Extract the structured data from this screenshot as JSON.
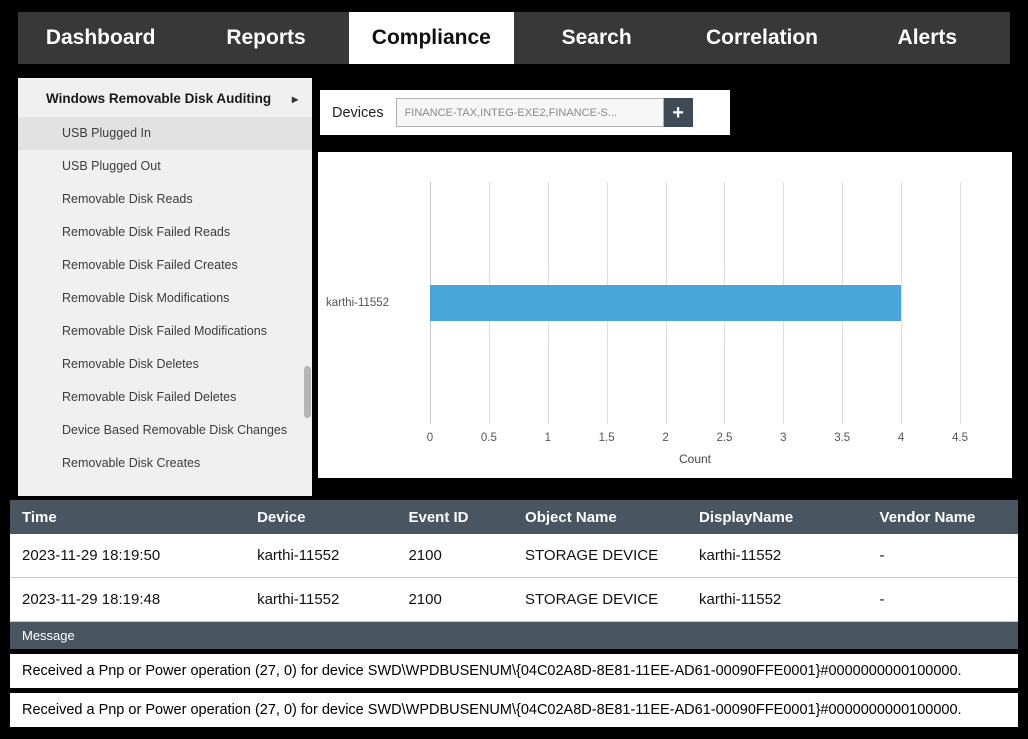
{
  "nav": {
    "items": [
      {
        "label": "Dashboard",
        "active": false
      },
      {
        "label": "Reports",
        "active": false
      },
      {
        "label": "Compliance",
        "active": true
      },
      {
        "label": "Search",
        "active": false
      },
      {
        "label": "Correlation",
        "active": false
      },
      {
        "label": "Alerts",
        "active": false
      }
    ]
  },
  "sidebar": {
    "header": "Windows Removable Disk Auditing",
    "chevron_icon": "▸",
    "items": [
      {
        "label": "USB Plugged In",
        "selected": true
      },
      {
        "label": "USB Plugged Out",
        "selected": false
      },
      {
        "label": "Removable Disk Reads",
        "selected": false
      },
      {
        "label": "Removable Disk Failed Reads",
        "selected": false
      },
      {
        "label": "Removable Disk Failed Creates",
        "selected": false
      },
      {
        "label": "Removable Disk Modifications",
        "selected": false
      },
      {
        "label": "Removable Disk Failed Modifications",
        "selected": false
      },
      {
        "label": "Removable Disk Deletes",
        "selected": false
      },
      {
        "label": "Removable Disk Failed Deletes",
        "selected": false
      },
      {
        "label": "Device Based Removable Disk Changes",
        "selected": false
      },
      {
        "label": "Removable Disk Creates",
        "selected": false
      }
    ]
  },
  "devices": {
    "label": "Devices",
    "value": "FINANCE-TAX,INTEG-EXE2,FINANCE-S...",
    "add_button": "+"
  },
  "chart_data": {
    "type": "bar",
    "orientation": "horizontal",
    "categories": [
      "karthi-11552"
    ],
    "values": [
      4
    ],
    "xticks": [
      0,
      0.5,
      1,
      1.5,
      2,
      2.5,
      3,
      3.5,
      4,
      4.5
    ],
    "xlim": [
      0,
      4.5
    ],
    "xlabel": "Count",
    "bar_color": "#4aa5da",
    "grid": true
  },
  "table": {
    "headers": [
      "Time",
      "Device",
      "Event ID",
      "Object Name",
      "DisplayName",
      "Vendor Name"
    ],
    "rows": [
      [
        "2023-11-29 18:19:50",
        "karthi-11552",
        "2100",
        "STORAGE DEVICE",
        "karthi-11552",
        "-"
      ],
      [
        "2023-11-29 18:19:48",
        "karthi-11552",
        "2100",
        "STORAGE DEVICE",
        "karthi-11552",
        "-"
      ]
    ]
  },
  "message": {
    "header": "Message",
    "rows": [
      "Received a Pnp or Power operation (27, 0) for device SWD\\WPDBUSENUM\\{04C02A8D-8E81-11EE-AD61-00090FFE0001}#0000000000100000.",
      "Received a Pnp or Power operation (27, 0) for device SWD\\WPDBUSENUM\\{04C02A8D-8E81-11EE-AD61-00090FFE0001}#0000000000100000."
    ]
  }
}
